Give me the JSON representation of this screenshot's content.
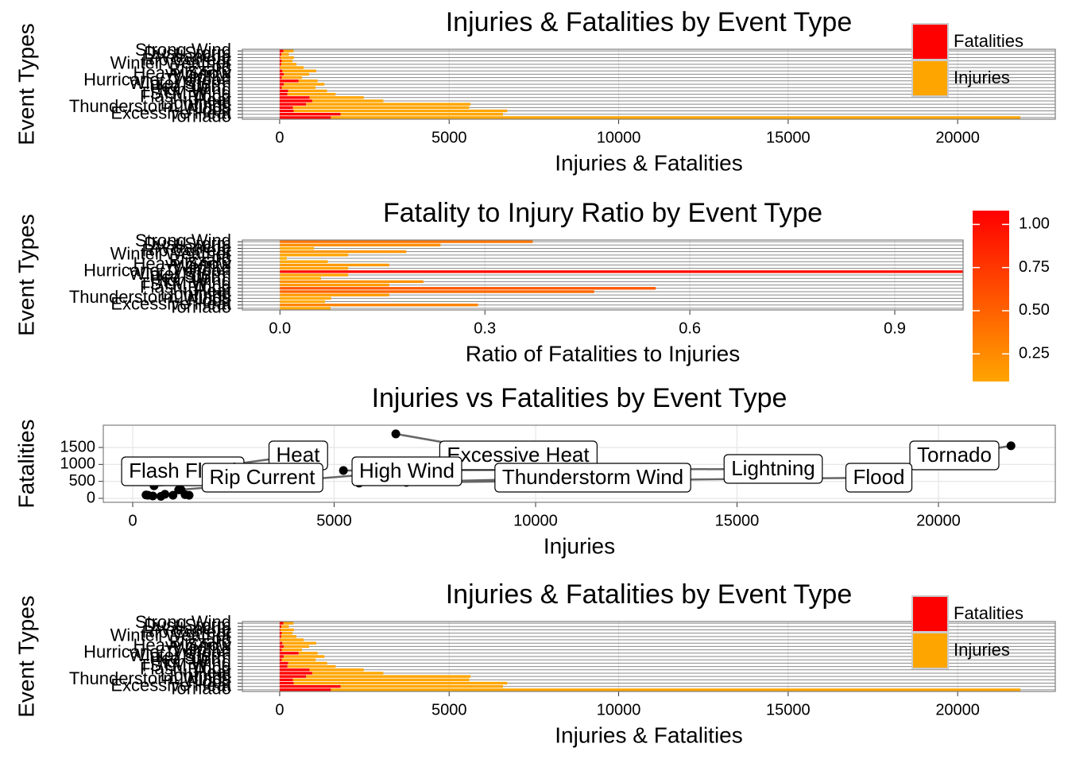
{
  "chart_data": [
    {
      "type": "bar",
      "orientation": "horizontal",
      "stacked": true,
      "title": "Injuries & Fatalities by Event Type",
      "xlabel": "Injuries & Fatalities",
      "ylabel": "Event Types",
      "categories": [
        "Tornado",
        "Excessive Heat",
        "Flood",
        "Thunderstorm Winds",
        "Lightning",
        "Heat",
        "Flash Flood",
        "TSTM Wind",
        "High Wind",
        "Ice Storm",
        "Winter Storm",
        "Hurricane/Typhoon",
        "Wildfire",
        "Heavy Snow",
        "Blizzard",
        "Fog",
        "Winter Weather",
        "Rip Current",
        "Avalanche",
        "Dust Storm",
        "Strong Wind"
      ],
      "series": [
        {
          "name": "Fatalities",
          "color": "#ff0000",
          "values": [
            1511,
            1797,
            414,
            390,
            780,
            960,
            880,
            230,
            250,
            60,
            120,
            560,
            60,
            120,
            80,
            10,
            45,
            60,
            20,
            50,
            110
          ]
        },
        {
          "name": "Injuries",
          "color": "#ffa500",
          "values": [
            20340,
            4791,
            6300,
            5200,
            4850,
            2100,
            1600,
            1420,
            1150,
            1000,
            1200,
            560,
            600,
            750,
            1000,
            700,
            450,
            320,
            400,
            220,
            300
          ]
        }
      ],
      "xlim": [
        -1100,
        22880
      ],
      "xticks": [
        0,
        5000,
        10000,
        15000,
        20000
      ],
      "grid": true,
      "legend": "right"
    },
    {
      "type": "ratio_bar",
      "orientation": "horizontal",
      "title": "Fatality to Injury Ratio by Event Type",
      "xlabel": "Ratio of Fatalities to Injuries",
      "ylabel": "Event Types",
      "categories": [
        "Tornado",
        "Excessive Heat",
        "Flood",
        "Thunderstorm Winds",
        "Lightning",
        "Heat",
        "Flash Flood",
        "TSTM Wind",
        "High Wind",
        "Ice Storm",
        "Winter Storm",
        "Hurricane/Typhoon",
        "Wildfire",
        "Heavy Snow",
        "Blizzard",
        "Fog",
        "Winter Weather",
        "Rip Current",
        "Avalanche",
        "Dust Storm",
        "Strong Wind"
      ],
      "values": [
        0.074,
        0.29,
        0.066,
        0.075,
        0.16,
        0.46,
        0.55,
        0.16,
        0.21,
        0.06,
        0.1,
        1.0,
        0.1,
        0.16,
        0.07,
        0.01,
        0.1,
        0.185,
        0.05,
        0.235,
        0.37
      ],
      "colorscale": [
        "#ffa500",
        "#ff0000"
      ],
      "clim": [
        0.09,
        1.08
      ],
      "colorbar_ticks": [
        {
          "value": 0.25,
          "label": "0.25"
        },
        {
          "value": 0.5,
          "label": "0.50"
        },
        {
          "value": 0.75,
          "label": "0.75"
        },
        {
          "value": 1,
          "label": "1.00"
        }
      ],
      "xlim": [
        -0.055,
        1.0
      ],
      "xticks": [
        {
          "value": 0,
          "label": "0.0"
        },
        {
          "value": 0.3,
          "label": "0.3"
        },
        {
          "value": 0.6,
          "label": "0.6"
        },
        {
          "value": 0.9,
          "label": "0.9"
        }
      ],
      "grid": true
    },
    {
      "type": "scatter",
      "title": "Injuries vs Fatalities by Event Type",
      "xlabel": "Injuries",
      "ylabel": "Fatalities",
      "x": [
        21800,
        6530,
        6790,
        5620,
        5230,
        1780,
        2100,
        1140,
        530,
        330,
        380,
        500,
        700,
        800,
        1000,
        1200,
        1300,
        1400
      ],
      "y": [
        1550,
        1900,
        470,
        450,
        820,
        980,
        940,
        250,
        370,
        100,
        90,
        70,
        60,
        120,
        90,
        250,
        110,
        90
      ],
      "labels": [
        "Tornado",
        "Excessive Heat",
        "Flood",
        "Thunderstorm Wind",
        "Lightning",
        "Flash Flood",
        "Heat",
        "High Wind",
        "Rip Current",
        null,
        null,
        null,
        null,
        null,
        null,
        null,
        null,
        null
      ],
      "color": "#000000",
      "xlim": [
        -730,
        22900
      ],
      "xticks": [
        0,
        5000,
        10000,
        15000,
        20000
      ],
      "ylim": [
        -117,
        2156
      ],
      "yticks": [
        0,
        500,
        1000,
        1500
      ],
      "grid": true
    },
    {
      "type": "bar",
      "orientation": "horizontal",
      "stacked": true,
      "title": "Injuries & Fatalities by Event Type",
      "xlabel": "Injuries & Fatalities",
      "ylabel": "Event Types",
      "categories": [
        "Tornado",
        "Excessive Heat",
        "Flood",
        "Thunderstorm Winds",
        "Lightning",
        "Heat",
        "Flash Flood",
        "TSTM Wind",
        "High Wind",
        "Ice Storm",
        "Winter Storm",
        "Hurricane/Typhoon",
        "Wildfire",
        "Heavy Snow",
        "Blizzard",
        "Fog",
        "Winter Weather",
        "Rip Current",
        "Avalanche",
        "Dust Storm",
        "Strong Wind"
      ],
      "series": [
        {
          "name": "Fatalities",
          "color": "#ff0000",
          "values": [
            1511,
            1797,
            414,
            390,
            780,
            960,
            880,
            230,
            250,
            60,
            120,
            560,
            60,
            120,
            80,
            10,
            45,
            60,
            20,
            50,
            110
          ]
        },
        {
          "name": "Injuries",
          "color": "#ffa500",
          "values": [
            20340,
            4791,
            6300,
            5200,
            4850,
            2100,
            1600,
            1420,
            1150,
            1000,
            1200,
            560,
            600,
            750,
            1000,
            700,
            450,
            320,
            400,
            220,
            300
          ]
        }
      ],
      "xlim": [
        -1100,
        22880
      ],
      "xticks": [
        0,
        5000,
        10000,
        15000,
        20000
      ],
      "grid": true,
      "legend": "right"
    }
  ]
}
